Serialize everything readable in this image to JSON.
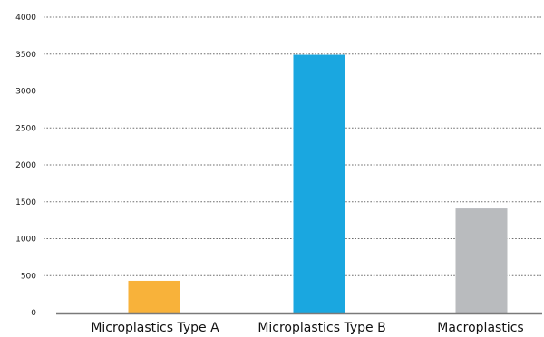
{
  "chart_data": {
    "type": "bar",
    "categories": [
      "Microplastics Type A",
      "Microplastics Type B",
      "Macroplastics"
    ],
    "values": [
      430,
      3490,
      1410
    ],
    "colors": [
      "#f8b23a",
      "#1aa7e0",
      "#b9bbbe"
    ],
    "ylim": [
      0,
      4000
    ],
    "yticks": [
      0,
      500,
      1000,
      1500,
      2000,
      2500,
      3000,
      3500,
      4000
    ],
    "title": "",
    "xlabel": "",
    "ylabel": "",
    "grid": "horizontal dotted",
    "legend": "none"
  }
}
